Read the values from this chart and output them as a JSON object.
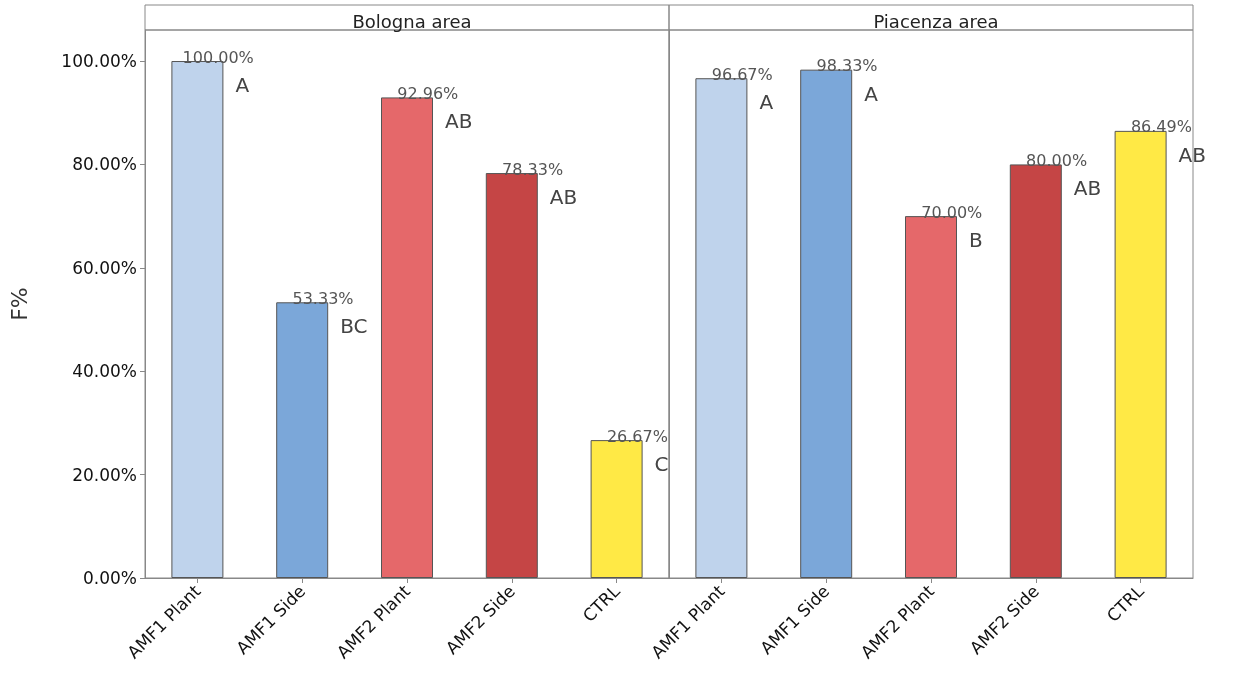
{
  "chart_data": [
    {
      "type": "bar",
      "title": "Bologna area",
      "ylabel": "F%",
      "categories": [
        "AMF1 Plant",
        "AMF1 Side",
        "AMF2 Plant",
        "AMF2 Side",
        "CTRL"
      ],
      "values": [
        100,
        53.33,
        92.96,
        78.33,
        26.67
      ],
      "colors": [
        "#bfd3ec",
        "#7ba7d9",
        "#e5686a",
        "#c54545",
        "#ffe945"
      ],
      "value_labels": [
        "100.00%",
        "53.33%",
        "92.96%",
        "78.33%",
        "26.67%"
      ],
      "ylim": [
        0,
        106
      ],
      "yticks": [
        {
          "value": 0,
          "label": "0.00%"
        },
        {
          "value": 20,
          "label": "20.00%"
        },
        {
          "value": 40,
          "label": "40.00%"
        },
        {
          "value": 60,
          "label": "60.00%"
        },
        {
          "value": 80,
          "label": "80.00%"
        },
        {
          "value": 100,
          "label": "100.00%"
        }
      ],
      "annotations": [
        {
          "text": "A",
          "x": "AMF1 Plant",
          "y": 100
        },
        {
          "text": "BC",
          "x": "AMF1 Side",
          "y": 53.33
        },
        {
          "text": "AB",
          "x": "AMF2 Plant",
          "y": 92.96
        },
        {
          "text": "AB",
          "x": "AMF2 Side",
          "y": 78.33
        },
        {
          "text": "C",
          "x": "CTRL",
          "y": 26.67
        }
      ]
    },
    {
      "type": "bar",
      "title": "Piacenza area",
      "categories": [
        "AMF1 Plant",
        "AMF1 Side",
        "AMF2 Plant",
        "AMF2 Side",
        "CTRL"
      ],
      "values": [
        96.67,
        98.33,
        70,
        80,
        86.49
      ],
      "colors": [
        "#bfd3ec",
        "#7ba7d9",
        "#e5686a",
        "#c54545",
        "#ffe945"
      ],
      "value_labels": [
        "96.67%",
        "98.33%",
        "70.00%",
        "80.00%",
        "86.49%"
      ],
      "ylim": [
        0,
        106
      ],
      "tick_labels": "x",
      "annotations": [
        {
          "text": "A",
          "x": "AMF1 Plant",
          "y": 96.67
        },
        {
          "text": "A",
          "x": "AMF1 Side",
          "y": 98.33
        },
        {
          "text": "B",
          "x": "AMF2 Plant",
          "y": 70
        },
        {
          "text": "AB",
          "x": "AMF2 Side",
          "y": 80
        },
        {
          "text": "AB",
          "x": "CTRL",
          "y": 86.49
        }
      ]
    }
  ]
}
